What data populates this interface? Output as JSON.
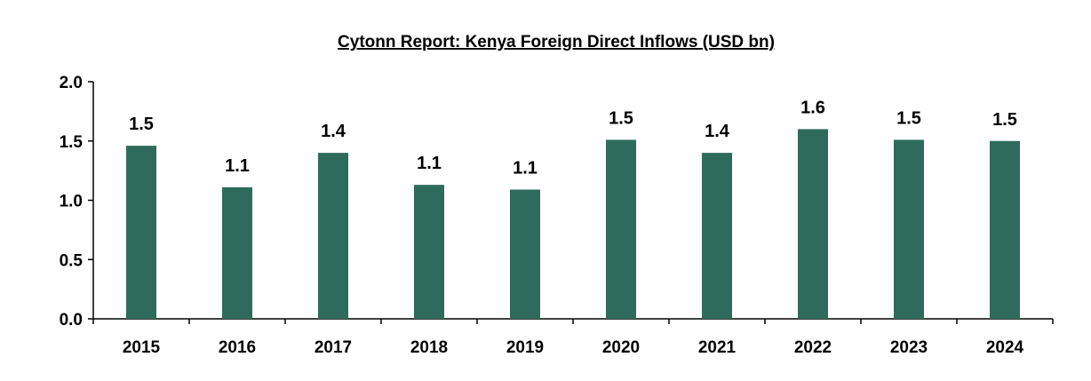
{
  "chart_data": {
    "type": "bar",
    "title": "Cytonn Report: Kenya Foreign Direct Inflows (USD bn)",
    "xlabel": "",
    "ylabel": "",
    "categories": [
      "2015",
      "2016",
      "2017",
      "2018",
      "2019",
      "2020",
      "2021",
      "2022",
      "2023",
      "2024"
    ],
    "values": [
      1.46,
      1.11,
      1.4,
      1.13,
      1.09,
      1.51,
      1.4,
      1.6,
      1.51,
      1.5
    ],
    "data_labels": [
      "1.5",
      "1.1",
      "1.4",
      "1.1",
      "1.1",
      "1.5",
      "1.4",
      "1.6",
      "1.5",
      "1.5"
    ],
    "ylim": [
      0,
      2.0
    ],
    "yticks": [
      "0.0",
      "0.5",
      "1.0",
      "1.5",
      "2.0"
    ],
    "grid": false,
    "bar_color": "#2e6b5c"
  }
}
